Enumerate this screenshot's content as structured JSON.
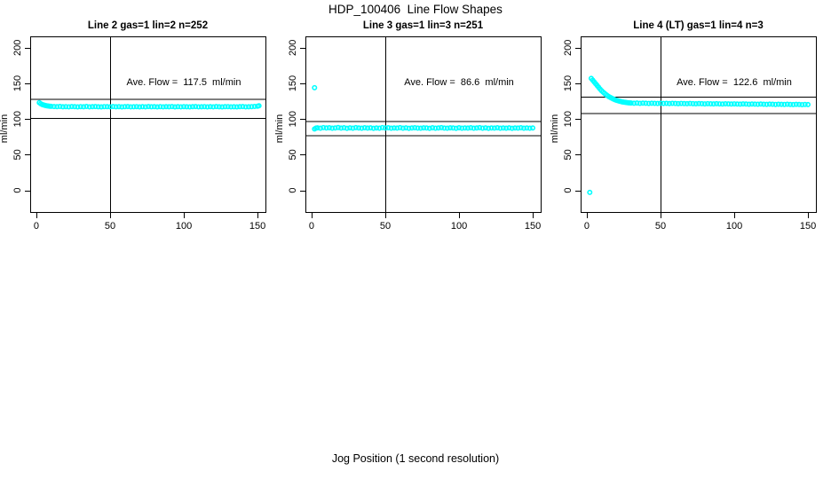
{
  "page": {
    "title": "HDP_100406  Line Flow Shapes",
    "xlabel": "Jog Position (1 second resolution)"
  },
  "chart_data": [
    {
      "type": "scatter",
      "title": "Line 2 gas=1 lin=2 n=252",
      "annotation": "Ave. Flow =  117.5  ml/min",
      "ave_flow_ml_min": 117.5,
      "ylabel": "ml/min",
      "xticks": [
        0,
        50,
        100,
        150
      ],
      "yticks": [
        0,
        50,
        100,
        150,
        200
      ],
      "xlim": [
        -4.2,
        155.4
      ],
      "ylim": [
        -30.5,
        216
      ],
      "vline_x": 50,
      "ref_lines": [
        128.5,
        101.5
      ],
      "point_color": "#00FFFF",
      "axis_color": "#000000",
      "points": [
        [
          2,
          123
        ],
        [
          3,
          121.4
        ],
        [
          4,
          120.3
        ],
        [
          5,
          119.6
        ],
        [
          6,
          119
        ],
        [
          7,
          118.6
        ],
        [
          8,
          118.2
        ],
        [
          9,
          118
        ],
        [
          10,
          117.8
        ],
        [
          12,
          117.5
        ],
        [
          14,
          117.3
        ],
        [
          16,
          117.6
        ],
        [
          18,
          117.2
        ],
        [
          20,
          117.4
        ],
        [
          22,
          117.1
        ],
        [
          24,
          117.5
        ],
        [
          26,
          117.3
        ],
        [
          28,
          117
        ],
        [
          30,
          117.4
        ],
        [
          32,
          117.2
        ],
        [
          34,
          117.6
        ],
        [
          36,
          117.1
        ],
        [
          38,
          117.3
        ],
        [
          40,
          117.5
        ],
        [
          42,
          117.2
        ],
        [
          44,
          117
        ],
        [
          46,
          117.4
        ],
        [
          48,
          117.3
        ],
        [
          50,
          117.1
        ],
        [
          52,
          117.5
        ],
        [
          54,
          117.2
        ],
        [
          56,
          117.4
        ],
        [
          58,
          117
        ],
        [
          60,
          117.3
        ],
        [
          62,
          117.5
        ],
        [
          64,
          117.1
        ],
        [
          66,
          117.2
        ],
        [
          68,
          117.4
        ],
        [
          70,
          117
        ],
        [
          72,
          117.3
        ],
        [
          74,
          117.1
        ],
        [
          76,
          117.5
        ],
        [
          78,
          117.2
        ],
        [
          80,
          117.3
        ],
        [
          82,
          117
        ],
        [
          84,
          117.4
        ],
        [
          86,
          117.1
        ],
        [
          88,
          117.3
        ],
        [
          90,
          117.2
        ],
        [
          92,
          117.5
        ],
        [
          94,
          117
        ],
        [
          96,
          117.3
        ],
        [
          98,
          117.1
        ],
        [
          100,
          117.4
        ],
        [
          102,
          117.2
        ],
        [
          104,
          117
        ],
        [
          106,
          117.3
        ],
        [
          108,
          117.5
        ],
        [
          110,
          117.1
        ],
        [
          112,
          117.2
        ],
        [
          114,
          117.4
        ],
        [
          116,
          117
        ],
        [
          118,
          117.3
        ],
        [
          120,
          117.1
        ],
        [
          122,
          117.5
        ],
        [
          124,
          117.2
        ],
        [
          126,
          117
        ],
        [
          128,
          117.3
        ],
        [
          130,
          117.4
        ],
        [
          132,
          117.1
        ],
        [
          134,
          117.2
        ],
        [
          136,
          117
        ],
        [
          138,
          117.3
        ],
        [
          140,
          117.5
        ],
        [
          142,
          117.1
        ],
        [
          144,
          117.2
        ],
        [
          146,
          117.4
        ],
        [
          148,
          117.6
        ],
        [
          150,
          117.9
        ],
        [
          151,
          118.6
        ]
      ]
    },
    {
      "type": "scatter",
      "title": "Line 3 gas=1 lin=3 n=251",
      "annotation": "Ave. Flow =  86.6  ml/min",
      "ave_flow_ml_min": 86.6,
      "ylabel": "ml/min",
      "xticks": [
        0,
        50,
        100,
        150
      ],
      "yticks": [
        0,
        50,
        100,
        150,
        200
      ],
      "xlim": [
        -4.2,
        155.4
      ],
      "ylim": [
        -30.5,
        216
      ],
      "vline_x": 50,
      "ref_lines": [
        97,
        77
      ],
      "point_color": "#00FFFF",
      "axis_color": "#000000",
      "points": [
        [
          2,
          144
        ],
        [
          2,
          86
        ],
        [
          3,
          87.3
        ],
        [
          4,
          87.6
        ],
        [
          6,
          87.2
        ],
        [
          8,
          88
        ],
        [
          10,
          87.4
        ],
        [
          12,
          87.8
        ],
        [
          14,
          87.1
        ],
        [
          16,
          87.5
        ],
        [
          18,
          88.1
        ],
        [
          20,
          87.3
        ],
        [
          22,
          87.7
        ],
        [
          24,
          87
        ],
        [
          26,
          87.6
        ],
        [
          28,
          87.2
        ],
        [
          30,
          87.9
        ],
        [
          32,
          87.4
        ],
        [
          34,
          87.1
        ],
        [
          36,
          87.8
        ],
        [
          38,
          87.3
        ],
        [
          40,
          87.6
        ],
        [
          42,
          87
        ],
        [
          44,
          87.5
        ],
        [
          46,
          87.2
        ],
        [
          48,
          88
        ],
        [
          50,
          87.4
        ],
        [
          52,
          87.7
        ],
        [
          54,
          87.1
        ],
        [
          56,
          87.5
        ],
        [
          58,
          87.3
        ],
        [
          60,
          87.9
        ],
        [
          62,
          87.2
        ],
        [
          64,
          87.6
        ],
        [
          66,
          87
        ],
        [
          68,
          87.4
        ],
        [
          70,
          87.8
        ],
        [
          72,
          87.3
        ],
        [
          74,
          87.1
        ],
        [
          76,
          87.6
        ],
        [
          78,
          87.4
        ],
        [
          80,
          87
        ],
        [
          82,
          87.7
        ],
        [
          84,
          87.2
        ],
        [
          86,
          87.5
        ],
        [
          88,
          87.9
        ],
        [
          90,
          87.3
        ],
        [
          92,
          87.1
        ],
        [
          94,
          87.6
        ],
        [
          96,
          87.4
        ],
        [
          98,
          87
        ],
        [
          100,
          87.8
        ],
        [
          102,
          87.2
        ],
        [
          104,
          87.5
        ],
        [
          106,
          87.3
        ],
        [
          108,
          87.7
        ],
        [
          110,
          87.1
        ],
        [
          112,
          87.4
        ],
        [
          114,
          87.9
        ],
        [
          116,
          87.2
        ],
        [
          118,
          87.6
        ],
        [
          120,
          87
        ],
        [
          122,
          87.5
        ],
        [
          124,
          87.3
        ],
        [
          126,
          87.8
        ],
        [
          128,
          87.1
        ],
        [
          130,
          87.4
        ],
        [
          132,
          87.2
        ],
        [
          134,
          87.6
        ],
        [
          136,
          87
        ],
        [
          138,
          87.5
        ],
        [
          140,
          87.3
        ],
        [
          142,
          87.7
        ],
        [
          144,
          87.2
        ],
        [
          146,
          87.4
        ],
        [
          148,
          87.1
        ],
        [
          150,
          87.5
        ]
      ]
    },
    {
      "type": "scatter",
      "title": "Line 4 (LT) gas=1 lin=4 n=3",
      "annotation": "Ave. Flow =  122.6  ml/min",
      "ave_flow_ml_min": 122.6,
      "ylabel": "ml/min",
      "xticks": [
        0,
        50,
        100,
        150
      ],
      "yticks": [
        0,
        50,
        100,
        150,
        200
      ],
      "xlim": [
        -4.2,
        155.4
      ],
      "ylim": [
        -30.5,
        216
      ],
      "vline_x": 50,
      "ref_lines": [
        131.5,
        108.5
      ],
      "point_color": "#00FFFF",
      "axis_color": "#000000",
      "points": [
        [
          2,
          -3
        ],
        [
          3,
          157
        ],
        [
          4,
          154.5
        ],
        [
          5,
          152
        ],
        [
          6,
          149.5
        ],
        [
          7,
          147
        ],
        [
          8,
          144.5
        ],
        [
          9,
          142
        ],
        [
          10,
          139.8
        ],
        [
          11,
          137.8
        ],
        [
          12,
          136
        ],
        [
          13,
          134.3
        ],
        [
          14,
          132.8
        ],
        [
          15,
          131.4
        ],
        [
          16,
          130.2
        ],
        [
          17,
          129.1
        ],
        [
          18,
          128.1
        ],
        [
          19,
          127.2
        ],
        [
          20,
          126.4
        ],
        [
          21,
          125.7
        ],
        [
          22,
          125.1
        ],
        [
          23,
          124.6
        ],
        [
          24,
          124.1
        ],
        [
          25,
          123.7
        ],
        [
          26,
          123.4
        ],
        [
          27,
          123.1
        ],
        [
          28,
          122.8
        ],
        [
          29,
          122.6
        ],
        [
          30,
          122.4
        ],
        [
          32,
          122.2
        ],
        [
          34,
          122.4
        ],
        [
          36,
          122
        ],
        [
          38,
          122.3
        ],
        [
          40,
          122.1
        ],
        [
          42,
          121.9
        ],
        [
          44,
          122.2
        ],
        [
          46,
          122
        ],
        [
          48,
          121.8
        ],
        [
          50,
          122.1
        ],
        [
          52,
          121.9
        ],
        [
          54,
          122
        ],
        [
          56,
          121.7
        ],
        [
          58,
          122
        ],
        [
          60,
          121.8
        ],
        [
          62,
          121.6
        ],
        [
          64,
          121.9
        ],
        [
          66,
          121.7
        ],
        [
          68,
          121.5
        ],
        [
          70,
          121.8
        ],
        [
          72,
          121.6
        ],
        [
          74,
          121.4
        ],
        [
          76,
          121.7
        ],
        [
          78,
          121.5
        ],
        [
          80,
          121.3
        ],
        [
          82,
          121.6
        ],
        [
          84,
          121.4
        ],
        [
          86,
          121.2
        ],
        [
          88,
          121.5
        ],
        [
          90,
          121.3
        ],
        [
          92,
          121.1
        ],
        [
          94,
          121.4
        ],
        [
          96,
          121.2
        ],
        [
          98,
          121
        ],
        [
          100,
          121.3
        ],
        [
          102,
          121.1
        ],
        [
          104,
          120.9
        ],
        [
          106,
          121.2
        ],
        [
          108,
          121
        ],
        [
          110,
          120.8
        ],
        [
          112,
          121.1
        ],
        [
          114,
          120.9
        ],
        [
          116,
          120.7
        ],
        [
          118,
          121
        ],
        [
          120,
          120.8
        ],
        [
          122,
          120.6
        ],
        [
          124,
          120.9
        ],
        [
          126,
          120.7
        ],
        [
          128,
          120.5
        ],
        [
          130,
          120.8
        ],
        [
          132,
          120.6
        ],
        [
          134,
          120.4
        ],
        [
          136,
          120.7
        ],
        [
          138,
          120.5
        ],
        [
          140,
          120.3
        ],
        [
          142,
          120.6
        ],
        [
          144,
          120.4
        ],
        [
          146,
          120.2
        ],
        [
          148,
          120.5
        ],
        [
          150,
          120.3
        ]
      ]
    }
  ]
}
